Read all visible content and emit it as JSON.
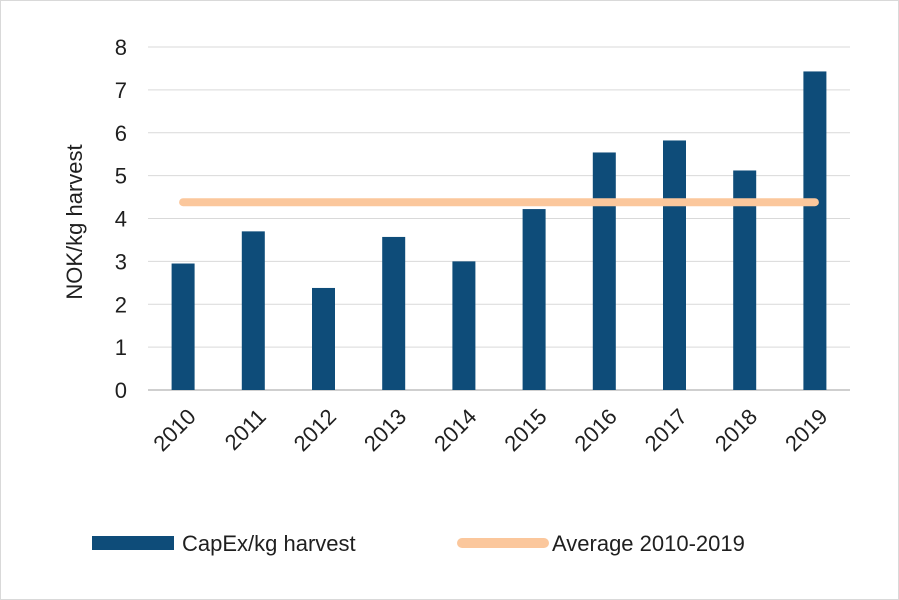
{
  "chart_data": {
    "type": "bar",
    "categories": [
      "2010",
      "2011",
      "2012",
      "2013",
      "2014",
      "2015",
      "2016",
      "2017",
      "2018",
      "2019"
    ],
    "series": [
      {
        "name": "CapEx/kg harvest",
        "type": "bar",
        "color": "#0e4c79",
        "values": [
          2.95,
          3.7,
          2.38,
          3.57,
          3.0,
          4.22,
          5.54,
          5.82,
          5.12,
          7.43
        ]
      },
      {
        "name": "Average 2010-2019",
        "type": "line",
        "color": "#fbc79c",
        "values": [
          4.38,
          4.38,
          4.38,
          4.38,
          4.38,
          4.38,
          4.38,
          4.38,
          4.38,
          4.38
        ]
      }
    ],
    "xlabel": "",
    "ylabel": "NOK/kg harvest",
    "ylim": [
      0,
      8
    ],
    "yticks": [
      "0",
      "1",
      "2",
      "3",
      "4",
      "5",
      "6",
      "7",
      "8"
    ],
    "grid": true,
    "legend_position": "bottom"
  }
}
